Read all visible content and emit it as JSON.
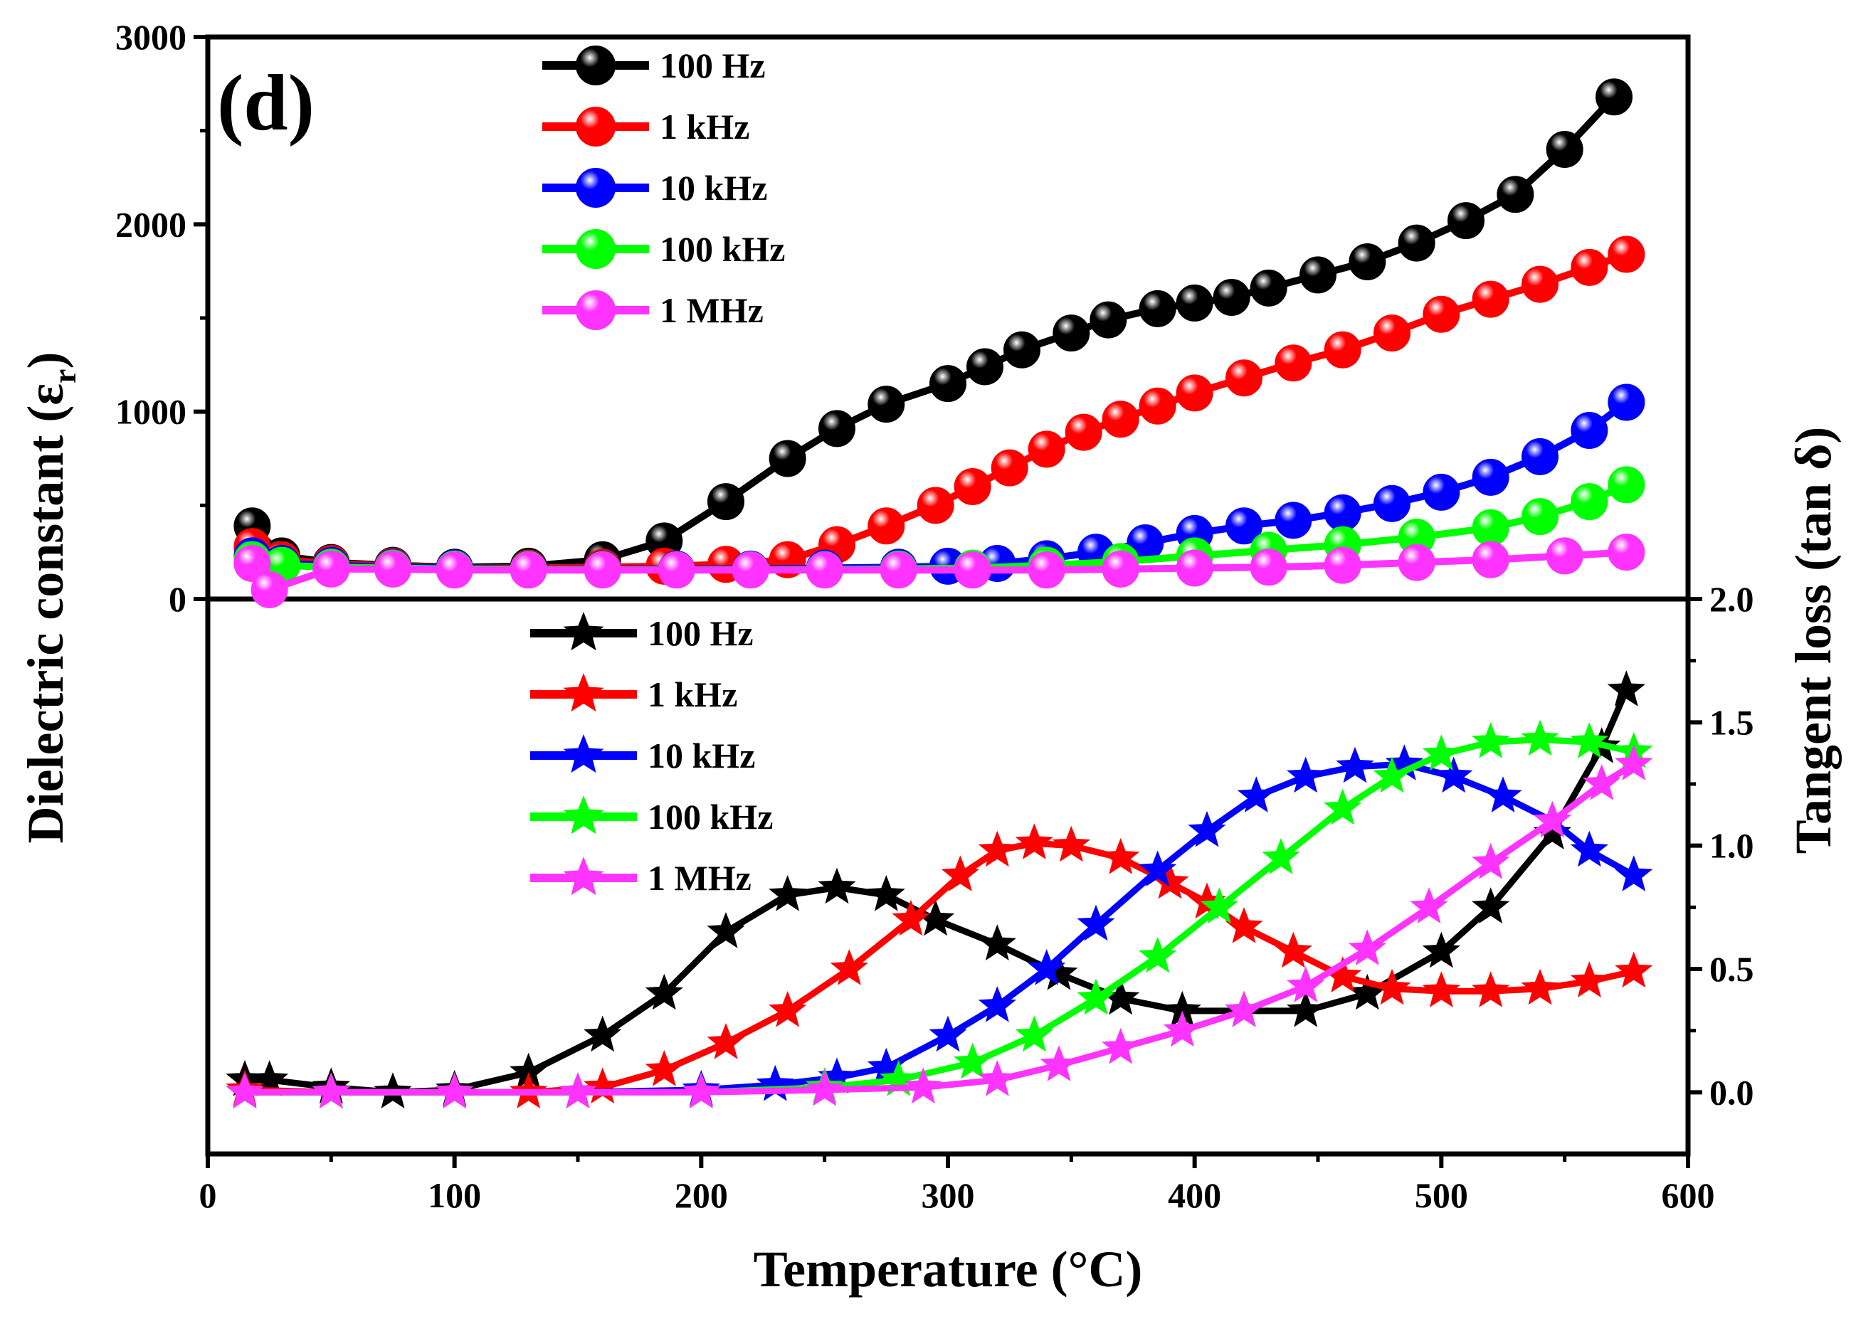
{
  "chart_data": {
    "type": "line",
    "panel_label": "(d)",
    "xlabel": "Temperature (°C)",
    "xlim": [
      0,
      600
    ],
    "x_ticks": [
      0,
      100,
      200,
      300,
      400,
      500,
      600
    ],
    "top": {
      "ylabel": "Dielectric constant (εr)",
      "ylabel_main": "Dielectric constant (ε",
      "ylabel_sub": "r",
      "ylabel_close": ")",
      "ylim": [
        0,
        3000
      ],
      "y_ticks": [
        0,
        1000,
        2000,
        3000
      ],
      "marker": "sphere",
      "series": [
        {
          "name": "100 Hz",
          "color": "#000000",
          "x": [
            18,
            30,
            50,
            75,
            100,
            130,
            160,
            185,
            210,
            235,
            255,
            275,
            300,
            315,
            330,
            350,
            365,
            385,
            400,
            415,
            430,
            450,
            470,
            490,
            510,
            530,
            550,
            570
          ],
          "y": [
            390,
            230,
            195,
            180,
            170,
            175,
            210,
            310,
            520,
            750,
            910,
            1040,
            1150,
            1240,
            1330,
            1420,
            1490,
            1550,
            1580,
            1610,
            1660,
            1730,
            1800,
            1900,
            2020,
            2160,
            2400,
            2680
          ]
        },
        {
          "name": "1 kHz",
          "color": "#ff0000",
          "x": [
            18,
            30,
            50,
            75,
            100,
            130,
            160,
            185,
            210,
            235,
            255,
            275,
            295,
            310,
            325,
            340,
            355,
            370,
            385,
            400,
            420,
            440,
            460,
            480,
            500,
            520,
            540,
            560,
            575
          ],
          "y": [
            280,
            210,
            190,
            175,
            165,
            165,
            170,
            175,
            185,
            210,
            290,
            390,
            500,
            600,
            700,
            800,
            890,
            960,
            1030,
            1100,
            1180,
            1260,
            1330,
            1420,
            1520,
            1600,
            1680,
            1770,
            1840
          ]
        },
        {
          "name": "10 kHz",
          "color": "#0000ff",
          "x": [
            18,
            30,
            50,
            75,
            100,
            130,
            160,
            190,
            220,
            250,
            280,
            300,
            320,
            340,
            360,
            380,
            400,
            420,
            440,
            460,
            480,
            500,
            520,
            540,
            560,
            575
          ],
          "y": [
            230,
            190,
            180,
            170,
            165,
            160,
            160,
            160,
            160,
            165,
            170,
            175,
            190,
            215,
            250,
            300,
            350,
            390,
            420,
            460,
            510,
            570,
            650,
            760,
            900,
            1050
          ]
        },
        {
          "name": "100 kHz",
          "color": "#00ff00",
          "x": [
            18,
            30,
            50,
            75,
            100,
            130,
            160,
            190,
            220,
            250,
            280,
            310,
            340,
            370,
            400,
            430,
            460,
            490,
            520,
            540,
            560,
            575
          ],
          "y": [
            210,
            180,
            170,
            165,
            160,
            158,
            157,
            156,
            156,
            157,
            160,
            165,
            180,
            200,
            230,
            260,
            290,
            330,
            380,
            440,
            520,
            610
          ]
        },
        {
          "name": "1 MHz",
          "color": "#ff33ff",
          "x": [
            18,
            25,
            50,
            75,
            100,
            130,
            160,
            190,
            220,
            250,
            280,
            310,
            340,
            370,
            400,
            430,
            460,
            490,
            520,
            550,
            575
          ],
          "y": [
            190,
            50,
            160,
            160,
            155,
            155,
            155,
            155,
            155,
            155,
            155,
            155,
            155,
            160,
            165,
            170,
            180,
            195,
            210,
            230,
            250
          ]
        }
      ]
    },
    "bottom": {
      "ylabel": "Tangent loss (tan δ)",
      "ylim": [
        -0.25,
        2.0
      ],
      "y_ticks": [
        0.0,
        0.5,
        1.0,
        1.5,
        2.0
      ],
      "y_tick_labels": [
        "0.0",
        "0.5",
        "1.0",
        "1.5",
        "2.0"
      ],
      "marker": "star",
      "series": [
        {
          "name": "100 Hz",
          "color": "#000000",
          "x": [
            15,
            25,
            50,
            75,
            100,
            130,
            160,
            185,
            210,
            235,
            255,
            275,
            295,
            320,
            345,
            370,
            395,
            420,
            445,
            470,
            500,
            520,
            545,
            565,
            575
          ],
          "y": [
            0.05,
            0.05,
            0.02,
            0.0,
            0.01,
            0.08,
            0.23,
            0.4,
            0.65,
            0.8,
            0.83,
            0.8,
            0.7,
            0.6,
            0.48,
            0.38,
            0.33,
            0.33,
            0.33,
            0.4,
            0.57,
            0.75,
            1.05,
            1.4,
            1.63
          ]
        },
        {
          "name": "1 kHz",
          "color": "#ff0000",
          "x": [
            15,
            50,
            100,
            130,
            160,
            185,
            210,
            235,
            260,
            285,
            305,
            320,
            335,
            350,
            370,
            390,
            405,
            420,
            440,
            460,
            480,
            500,
            520,
            540,
            560,
            578
          ],
          "y": [
            0.01,
            0.0,
            0.0,
            0.0,
            0.02,
            0.09,
            0.2,
            0.33,
            0.5,
            0.7,
            0.88,
            0.98,
            1.01,
            1.0,
            0.95,
            0.85,
            0.77,
            0.67,
            0.57,
            0.47,
            0.42,
            0.41,
            0.41,
            0.42,
            0.45,
            0.49
          ]
        },
        {
          "name": "10 kHz",
          "color": "#0000ff",
          "x": [
            15,
            50,
            100,
            150,
            200,
            230,
            255,
            275,
            300,
            320,
            340,
            360,
            385,
            405,
            425,
            445,
            465,
            485,
            505,
            525,
            545,
            560,
            578
          ],
          "y": [
            0.0,
            0.0,
            0.0,
            0.0,
            0.01,
            0.03,
            0.06,
            0.1,
            0.23,
            0.35,
            0.5,
            0.68,
            0.9,
            1.06,
            1.2,
            1.28,
            1.32,
            1.33,
            1.28,
            1.2,
            1.1,
            0.98,
            0.88
          ]
        },
        {
          "name": "100 kHz",
          "color": "#00ff00",
          "x": [
            15,
            50,
            100,
            150,
            200,
            250,
            280,
            310,
            335,
            360,
            385,
            410,
            435,
            460,
            480,
            500,
            520,
            540,
            560,
            578
          ],
          "y": [
            0.0,
            0.0,
            0.0,
            0.0,
            0.0,
            0.02,
            0.05,
            0.12,
            0.23,
            0.38,
            0.55,
            0.75,
            0.95,
            1.15,
            1.28,
            1.37,
            1.42,
            1.43,
            1.42,
            1.38
          ]
        },
        {
          "name": "1 MHz",
          "color": "#ff33ff",
          "x": [
            15,
            50,
            100,
            150,
            200,
            250,
            290,
            320,
            345,
            370,
            395,
            420,
            445,
            470,
            495,
            520,
            545,
            565,
            578
          ],
          "y": [
            0.0,
            0.0,
            0.0,
            0.0,
            0.0,
            0.01,
            0.02,
            0.05,
            0.11,
            0.18,
            0.25,
            0.33,
            0.43,
            0.58,
            0.75,
            0.93,
            1.1,
            1.25,
            1.33
          ]
        }
      ]
    }
  }
}
